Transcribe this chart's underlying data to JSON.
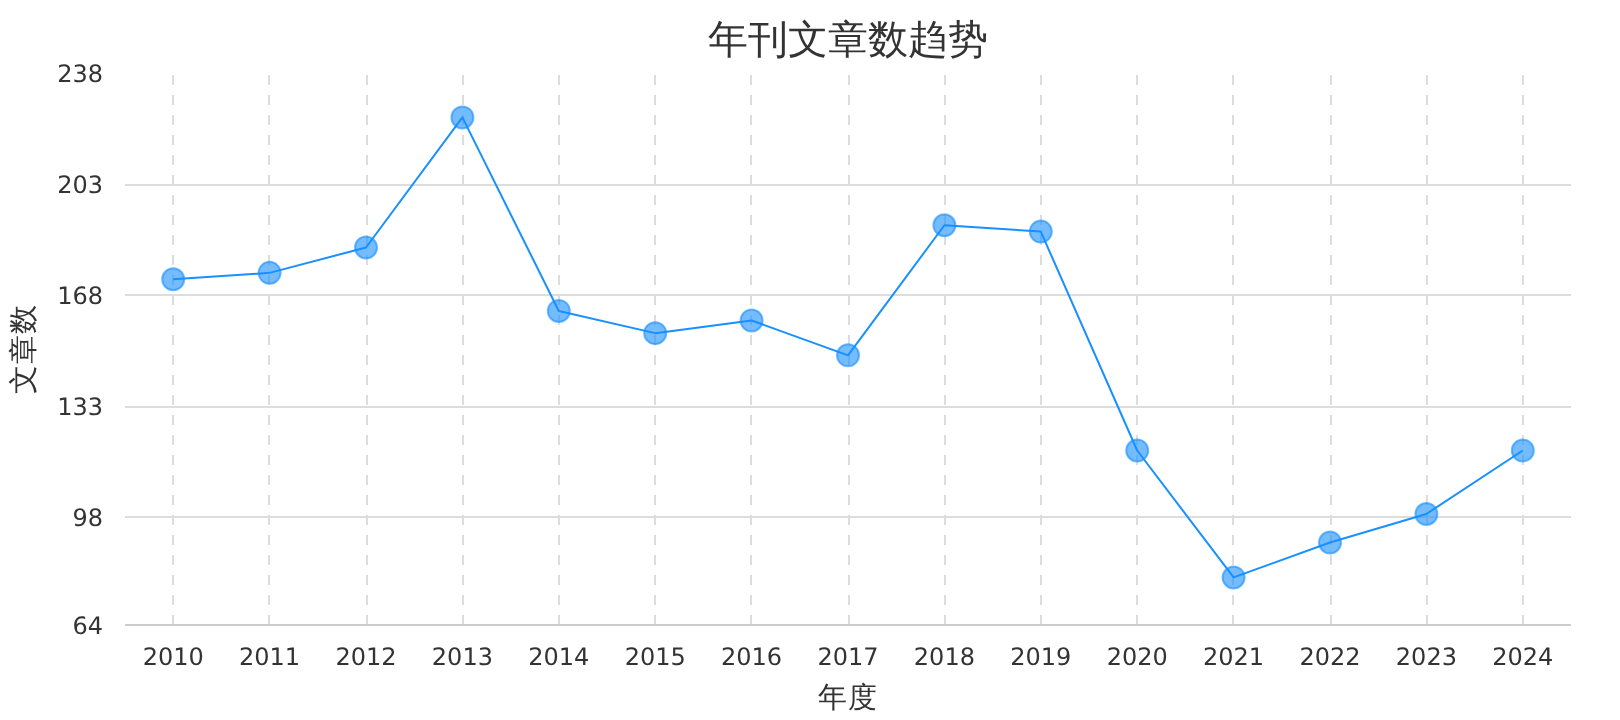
{
  "chart_data": {
    "type": "line",
    "title": "年刊文章数趋势",
    "xlabel": "年度",
    "ylabel": "文章数",
    "categories": [
      "2010",
      "2011",
      "2012",
      "2013",
      "2014",
      "2015",
      "2016",
      "2017",
      "2018",
      "2019",
      "2020",
      "2021",
      "2022",
      "2023",
      "2024"
    ],
    "series": [
      {
        "color": "#1890ff",
        "values": [
          173,
          175,
          183,
          224,
          163,
          156,
          160,
          149,
          190,
          188,
          119,
          79,
          90,
          99,
          119
        ]
      }
    ],
    "ylim": [
      64,
      238
    ],
    "yticks": [
      64,
      98,
      133,
      168,
      203,
      238
    ],
    "grid": true,
    "marker": "circle",
    "line_style": "solid"
  }
}
